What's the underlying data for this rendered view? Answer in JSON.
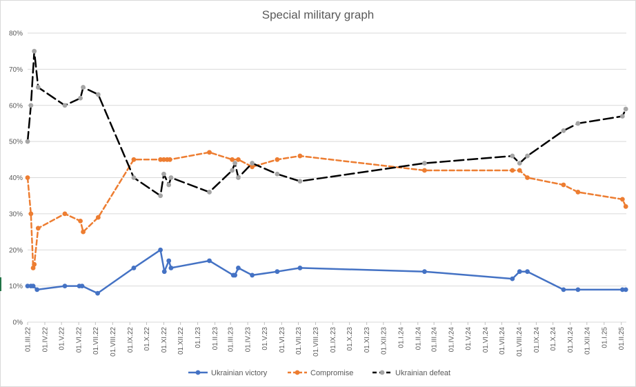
{
  "chart_data": {
    "type": "line",
    "title": "Special military graph",
    "xlabel": "",
    "ylabel": "",
    "ylim": [
      0,
      0.8
    ],
    "y_ticks": [
      {
        "value": 0.0,
        "label": "0%"
      },
      {
        "value": 0.1,
        "label": "10%"
      },
      {
        "value": 0.2,
        "label": "20%"
      },
      {
        "value": 0.3,
        "label": "30%"
      },
      {
        "value": 0.4,
        "label": "40%"
      },
      {
        "value": 0.5,
        "label": "50%"
      },
      {
        "value": 0.6,
        "label": "60%"
      },
      {
        "value": 0.7,
        "label": "70%"
      },
      {
        "value": 0.8,
        "label": "80%"
      }
    ],
    "xlim": [
      "2022-03-01",
      "2025-02-10"
    ],
    "x_ticks": [
      {
        "date": "2022-03-01",
        "label": "01.III.22"
      },
      {
        "date": "2022-04-01",
        "label": "01.IV.22"
      },
      {
        "date": "2022-05-01",
        "label": "01.V.22"
      },
      {
        "date": "2022-06-01",
        "label": "01.VI.22"
      },
      {
        "date": "2022-07-01",
        "label": "01.VII.22"
      },
      {
        "date": "2022-08-01",
        "label": "01.VIII.22"
      },
      {
        "date": "2022-09-01",
        "label": "01.IX.22"
      },
      {
        "date": "2022-10-01",
        "label": "01.X.22"
      },
      {
        "date": "2022-11-01",
        "label": "01.XI.22"
      },
      {
        "date": "2022-12-01",
        "label": "01.XII.22"
      },
      {
        "date": "2023-01-01",
        "label": "01.I.23"
      },
      {
        "date": "2023-02-01",
        "label": "01.II.23"
      },
      {
        "date": "2023-03-01",
        "label": "01.III.23"
      },
      {
        "date": "2023-04-01",
        "label": "01.IV.23"
      },
      {
        "date": "2023-05-01",
        "label": "01.V.23"
      },
      {
        "date": "2023-06-01",
        "label": "01.VI.23"
      },
      {
        "date": "2023-07-01",
        "label": "01.VII.23"
      },
      {
        "date": "2023-08-01",
        "label": "01.VIII.23"
      },
      {
        "date": "2023-09-01",
        "label": "01.IX.23"
      },
      {
        "date": "2023-10-01",
        "label": "01.X.23"
      },
      {
        "date": "2023-11-01",
        "label": "01.XI.23"
      },
      {
        "date": "2023-12-01",
        "label": "01.XII.23"
      },
      {
        "date": "2024-01-01",
        "label": "01.I.24"
      },
      {
        "date": "2024-02-01",
        "label": "01.II.24"
      },
      {
        "date": "2024-03-01",
        "label": "01.III.24"
      },
      {
        "date": "2024-04-01",
        "label": "01.IV.24"
      },
      {
        "date": "2024-05-01",
        "label": "01.V.24"
      },
      {
        "date": "2024-06-01",
        "label": "01.VI.24"
      },
      {
        "date": "2024-07-01",
        "label": "01.VII.24"
      },
      {
        "date": "2024-08-01",
        "label": "01.VIII.24"
      },
      {
        "date": "2024-09-01",
        "label": "01.IX.24"
      },
      {
        "date": "2024-10-01",
        "label": "01.X.24"
      },
      {
        "date": "2024-11-01",
        "label": "01.XI.24"
      },
      {
        "date": "2024-12-01",
        "label": "01.XII.24"
      },
      {
        "date": "2025-01-01",
        "label": "01.I.25"
      },
      {
        "date": "2025-02-01",
        "label": "01.II.25"
      }
    ],
    "grid": "horizontal",
    "legend": "bottom",
    "series": [
      {
        "name": "Ukrainian victory",
        "color": "#4472C4",
        "dash": "solid",
        "points": [
          {
            "x": "2022-03-01",
            "y": 0.1
          },
          {
            "x": "2022-03-07",
            "y": 0.1
          },
          {
            "x": "2022-03-11",
            "y": 0.1
          },
          {
            "x": "2022-03-18",
            "y": 0.09
          },
          {
            "x": "2022-05-07",
            "y": 0.1
          },
          {
            "x": "2022-06-02",
            "y": 0.1
          },
          {
            "x": "2022-06-07",
            "y": 0.1
          },
          {
            "x": "2022-07-05",
            "y": 0.08
          },
          {
            "x": "2022-09-08",
            "y": 0.15
          },
          {
            "x": "2022-10-26",
            "y": 0.2
          },
          {
            "x": "2022-11-02",
            "y": 0.14
          },
          {
            "x": "2022-11-10",
            "y": 0.17
          },
          {
            "x": "2022-11-14",
            "y": 0.15
          },
          {
            "x": "2023-01-22",
            "y": 0.17
          },
          {
            "x": "2023-03-06",
            "y": 0.13
          },
          {
            "x": "2023-03-09",
            "y": 0.13
          },
          {
            "x": "2023-03-15",
            "y": 0.15
          },
          {
            "x": "2023-04-09",
            "y": 0.13
          },
          {
            "x": "2023-05-24",
            "y": 0.14
          },
          {
            "x": "2023-07-04",
            "y": 0.15
          },
          {
            "x": "2024-02-13",
            "y": 0.14
          },
          {
            "x": "2024-07-20",
            "y": 0.12
          },
          {
            "x": "2024-08-02",
            "y": 0.14
          },
          {
            "x": "2024-08-16",
            "y": 0.14
          },
          {
            "x": "2024-10-20",
            "y": 0.09
          },
          {
            "x": "2024-11-15",
            "y": 0.09
          },
          {
            "x": "2025-02-03",
            "y": 0.09
          },
          {
            "x": "2025-02-09",
            "y": 0.09
          }
        ]
      },
      {
        "name": "Compromise",
        "color": "#ED7D31",
        "dash": "dashed",
        "points": [
          {
            "x": "2022-03-01",
            "y": 0.4
          },
          {
            "x": "2022-03-07",
            "y": 0.3
          },
          {
            "x": "2022-03-11",
            "y": 0.15
          },
          {
            "x": "2022-03-13",
            "y": 0.16
          },
          {
            "x": "2022-03-20",
            "y": 0.26
          },
          {
            "x": "2022-05-07",
            "y": 0.3
          },
          {
            "x": "2022-06-04",
            "y": 0.28
          },
          {
            "x": "2022-06-09",
            "y": 0.25
          },
          {
            "x": "2022-07-06",
            "y": 0.29
          },
          {
            "x": "2022-09-08",
            "y": 0.45
          },
          {
            "x": "2022-10-26",
            "y": 0.45
          },
          {
            "x": "2022-11-01",
            "y": 0.45
          },
          {
            "x": "2022-11-07",
            "y": 0.45
          },
          {
            "x": "2022-11-12",
            "y": 0.45
          },
          {
            "x": "2023-01-22",
            "y": 0.47
          },
          {
            "x": "2023-03-04",
            "y": 0.45
          },
          {
            "x": "2023-03-15",
            "y": 0.45
          },
          {
            "x": "2023-04-09",
            "y": 0.43
          },
          {
            "x": "2023-05-24",
            "y": 0.45
          },
          {
            "x": "2023-07-04",
            "y": 0.46
          },
          {
            "x": "2024-02-13",
            "y": 0.42
          },
          {
            "x": "2024-07-20",
            "y": 0.42
          },
          {
            "x": "2024-08-02",
            "y": 0.42
          },
          {
            "x": "2024-08-16",
            "y": 0.4
          },
          {
            "x": "2024-10-20",
            "y": 0.38
          },
          {
            "x": "2024-11-15",
            "y": 0.36
          },
          {
            "x": "2025-02-03",
            "y": 0.34
          },
          {
            "x": "2025-02-09",
            "y": 0.32
          }
        ]
      },
      {
        "name": "Ukrainian defeat",
        "color": "#000000",
        "marker_color": "#A5A5A5",
        "dash": "longdash",
        "points": [
          {
            "x": "2022-03-01",
            "y": 0.5
          },
          {
            "x": "2022-03-07",
            "y": 0.6
          },
          {
            "x": "2022-03-13",
            "y": 0.75
          },
          {
            "x": "2022-03-20",
            "y": 0.65
          },
          {
            "x": "2022-05-07",
            "y": 0.6
          },
          {
            "x": "2022-06-04",
            "y": 0.62
          },
          {
            "x": "2022-06-09",
            "y": 0.65
          },
          {
            "x": "2022-07-06",
            "y": 0.63
          },
          {
            "x": "2022-09-08",
            "y": 0.4
          },
          {
            "x": "2022-10-26",
            "y": 0.35
          },
          {
            "x": "2022-11-01",
            "y": 0.41
          },
          {
            "x": "2022-11-10",
            "y": 0.38
          },
          {
            "x": "2022-11-14",
            "y": 0.4
          },
          {
            "x": "2023-01-22",
            "y": 0.36
          },
          {
            "x": "2023-03-04",
            "y": 0.42
          },
          {
            "x": "2023-03-09",
            "y": 0.44
          },
          {
            "x": "2023-03-15",
            "y": 0.4
          },
          {
            "x": "2023-04-09",
            "y": 0.44
          },
          {
            "x": "2023-05-24",
            "y": 0.41
          },
          {
            "x": "2023-07-04",
            "y": 0.39
          },
          {
            "x": "2024-02-13",
            "y": 0.44
          },
          {
            "x": "2024-07-20",
            "y": 0.46
          },
          {
            "x": "2024-08-02",
            "y": 0.44
          },
          {
            "x": "2024-08-16",
            "y": 0.46
          },
          {
            "x": "2024-10-20",
            "y": 0.53
          },
          {
            "x": "2024-11-15",
            "y": 0.55
          },
          {
            "x": "2025-02-03",
            "y": 0.57
          },
          {
            "x": "2025-02-09",
            "y": 0.59
          }
        ]
      }
    ]
  }
}
